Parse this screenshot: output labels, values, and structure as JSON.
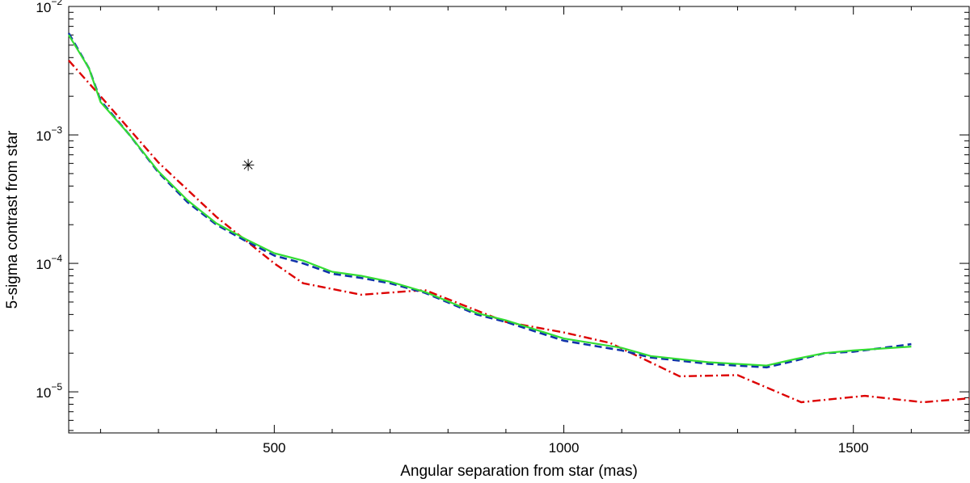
{
  "chart_data": {
    "type": "line",
    "title": "",
    "xlabel": "Angular separation from star (mas)",
    "ylabel": "5-sigma contrast from star",
    "xlim": [
      145,
      1700
    ],
    "ylim_log10": [
      -5.32,
      -2.0
    ],
    "x_ticks": [
      {
        "value": 500,
        "label": "500"
      },
      {
        "value": 1000,
        "label": "1000"
      },
      {
        "value": 1500,
        "label": "1500"
      }
    ],
    "y_ticks": [
      {
        "exp": -5,
        "base": "10",
        "sup": "−5"
      },
      {
        "exp": -4,
        "base": "10",
        "sup": "−4"
      },
      {
        "exp": -3,
        "base": "10",
        "sup": "−3"
      },
      {
        "exp": -2,
        "base": "10",
        "sup": "−2"
      }
    ],
    "series": [
      {
        "name": "red-dashdot",
        "color": "#dd0000",
        "style": "dashdot",
        "points": [
          [
            145,
            0.0038
          ],
          [
            200,
            0.002
          ],
          [
            300,
            0.00061
          ],
          [
            400,
            0.00023
          ],
          [
            500,
            0.0001
          ],
          [
            550,
            7e-05
          ],
          [
            650,
            5.7e-05
          ],
          [
            760,
            6.2e-05
          ],
          [
            900,
            3.5e-05
          ],
          [
            1000,
            2.9e-05
          ],
          [
            1080,
            2.4e-05
          ],
          [
            1200,
            1.32e-05
          ],
          [
            1300,
            1.35e-05
          ],
          [
            1410,
            8.3e-06
          ],
          [
            1520,
            9.3e-06
          ],
          [
            1620,
            8.3e-06
          ],
          [
            1700,
            8.9e-06
          ]
        ]
      },
      {
        "name": "blue-dashed",
        "color": "#1133aa",
        "style": "dashed",
        "points": [
          [
            145,
            0.0062
          ],
          [
            180,
            0.0033
          ],
          [
            200,
            0.00185
          ],
          [
            250,
            0.001
          ],
          [
            300,
            0.00051
          ],
          [
            350,
            0.0003
          ],
          [
            400,
            0.0002
          ],
          [
            450,
            0.00015
          ],
          [
            500,
            0.000115
          ],
          [
            550,
            0.0001
          ],
          [
            600,
            8.3e-05
          ],
          [
            650,
            7.7e-05
          ],
          [
            700,
            7e-05
          ],
          [
            760,
            5.9e-05
          ],
          [
            850,
            4e-05
          ],
          [
            900,
            3.5e-05
          ],
          [
            1000,
            2.5e-05
          ],
          [
            1100,
            2.1e-05
          ],
          [
            1150,
            1.85e-05
          ],
          [
            1250,
            1.65e-05
          ],
          [
            1350,
            1.55e-05
          ],
          [
            1400,
            1.75e-05
          ],
          [
            1450,
            2e-05
          ],
          [
            1500,
            2.05e-05
          ],
          [
            1600,
            2.35e-05
          ]
        ]
      },
      {
        "name": "green-solid",
        "color": "#33dd33",
        "style": "solid",
        "points": [
          [
            145,
            0.006
          ],
          [
            180,
            0.0033
          ],
          [
            200,
            0.0018
          ],
          [
            250,
            0.001
          ],
          [
            300,
            0.00052
          ],
          [
            350,
            0.00031
          ],
          [
            400,
            0.000205
          ],
          [
            450,
            0.000155
          ],
          [
            500,
            0.00012
          ],
          [
            550,
            0.000105
          ],
          [
            600,
            8.6e-05
          ],
          [
            650,
            8e-05
          ],
          [
            700,
            7.2e-05
          ],
          [
            760,
            6e-05
          ],
          [
            850,
            4.1e-05
          ],
          [
            900,
            3.6e-05
          ],
          [
            1000,
            2.6e-05
          ],
          [
            1100,
            2.2e-05
          ],
          [
            1150,
            1.9e-05
          ],
          [
            1250,
            1.7e-05
          ],
          [
            1350,
            1.6e-05
          ],
          [
            1400,
            1.8e-05
          ],
          [
            1450,
            2e-05
          ],
          [
            1500,
            2.1e-05
          ],
          [
            1600,
            2.25e-05
          ]
        ]
      }
    ],
    "markers": [
      {
        "name": "asterisk",
        "symbol": "✳",
        "x": 455,
        "y": 0.00058
      }
    ]
  }
}
